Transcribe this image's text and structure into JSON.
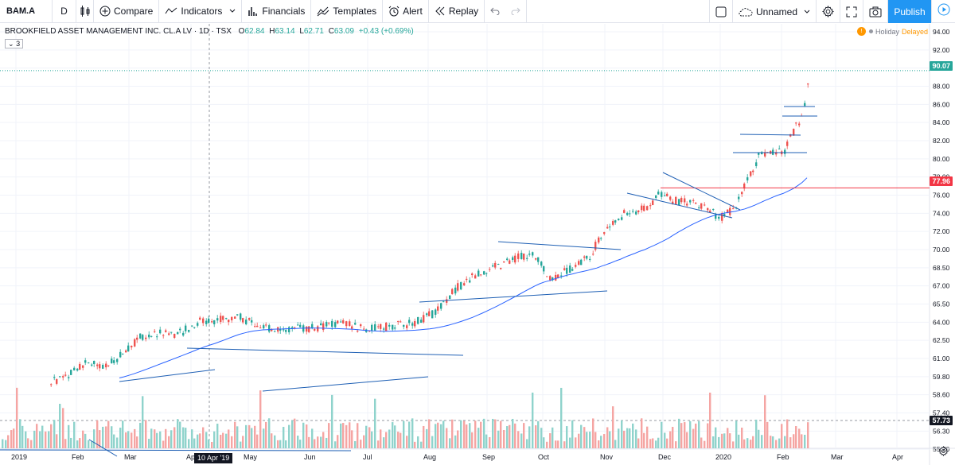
{
  "toolbar": {
    "symbol": "BAM.A",
    "interval": "D",
    "compare": "Compare",
    "indicators": "Indicators",
    "financials": "Financials",
    "templates": "Templates",
    "alert": "Alert",
    "replay": "Replay",
    "layout_name": "Unnamed",
    "publish": "Publish"
  },
  "legend": {
    "title": "BROOKFIELD ASSET MANAGEMENT INC. CL.A LV · 1D · TSX",
    "o_label": "O",
    "o_value": "62.84",
    "h_label": "H",
    "h_value": "63.14",
    "l_label": "L",
    "l_value": "62.71",
    "c_label": "C",
    "c_value": "63.09",
    "change": "+0.43 (+0.69%)",
    "indicator_count": "3"
  },
  "status": {
    "holiday": "Holiday",
    "delayed": "Delayed"
  },
  "price_tags": {
    "last_price": "90.07",
    "hline_price": "77.96",
    "cursor_price": "57.73"
  },
  "cursor_date": "10 Apr '19",
  "colors": {
    "up": "#26a69a",
    "down": "#ef5350",
    "up_volume": "#8fd3cc",
    "down_volume": "#f5a5a3",
    "ma_line": "#2962ff",
    "trend_line": "#1e5fb4",
    "horizontal_line": "#f23645",
    "accent": "#2196f3"
  },
  "chart_data": {
    "type": "candlestick",
    "y_axis_ticks": [
      "94.00",
      "92.00",
      "90.00",
      "88.00",
      "86.00",
      "84.00",
      "82.00",
      "80.00",
      "78.00",
      "76.00",
      "74.00",
      "72.00",
      "70.00",
      "68.50",
      "67.00",
      "65.50",
      "64.00",
      "62.50",
      "61.00",
      "59.80",
      "58.60",
      "57.40",
      "56.30",
      "55.20"
    ],
    "x_axis_ticks": [
      "2019",
      "Feb",
      "Mar",
      "Apr",
      "May",
      "Jun",
      "Jul",
      "Aug",
      "Sep",
      "Oct",
      "Nov",
      "Dec",
      "2020",
      "Feb",
      "Mar",
      "Apr"
    ],
    "last_close": 90.07,
    "horizontal_line": 77.96,
    "price_range": [
      55.2,
      94.0
    ]
  }
}
